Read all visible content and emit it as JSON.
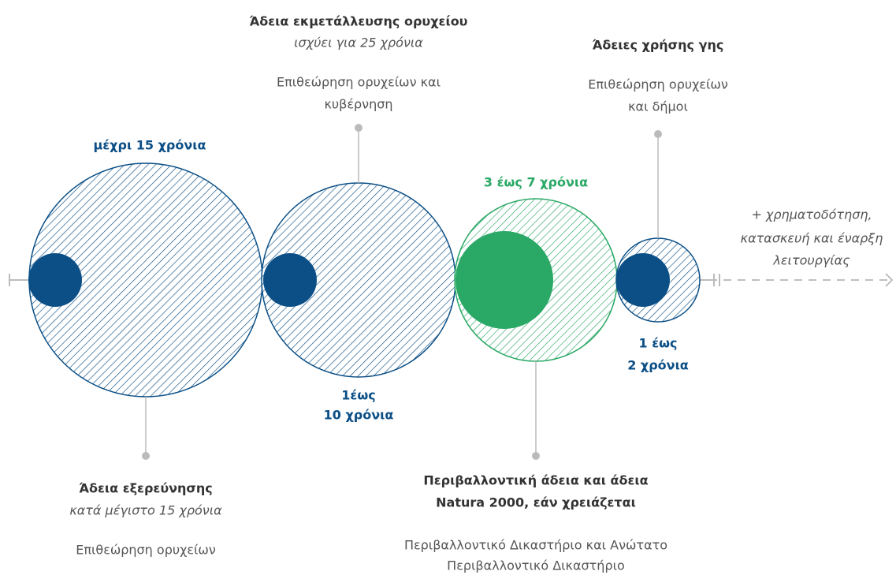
{
  "stages": [
    {
      "duration": "μέχρι 15 χρόνια",
      "title": "Άδεια εξερεύνησης",
      "validity": "κατά μέγιστο 15 χρόνια",
      "authority": [
        "Επιθεώρηση ορυχείων"
      ]
    },
    {
      "duration": [
        "1έως",
        "10 χρόνια"
      ],
      "title": "Άδεια εκμετάλλευσης ορυχείου",
      "validity": "ισχύει για 25 χρόνια",
      "authority": [
        "Επιθεώρηση ορυχείων και",
        "κυβέρνηση"
      ]
    },
    {
      "duration": "3 έως 7 χρόνια",
      "title": [
        "Περιβαλλοντική άδεια και άδεια",
        "Natura 2000, εάν χρειάζεται"
      ],
      "authority": [
        "Περιβαλλοντικό Δικαστήριο και Ανώτατο",
        "Περιβαλλοντικό Δικαστήριο"
      ]
    },
    {
      "duration": [
        "1 έως",
        "2 χρόνια"
      ],
      "title": "Άδειες χρήσης γης",
      "authority": [
        "Επιθεώρηση ορυχείων",
        "και δήμοι"
      ]
    }
  ],
  "next": [
    "+ χρηματοδότηση,",
    "κατασκευή και έναρξη",
    "λειτουργίας"
  ]
}
